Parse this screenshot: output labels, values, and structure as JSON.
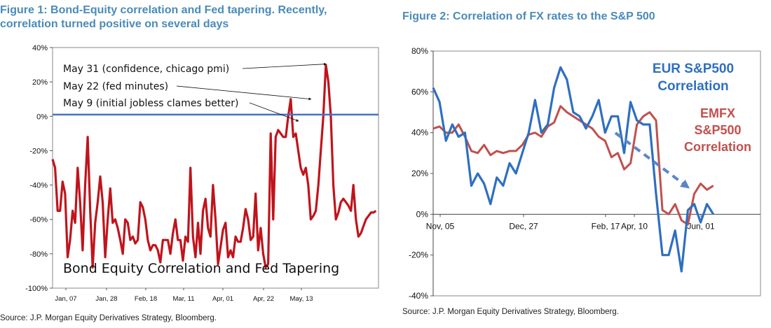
{
  "figure1": {
    "title": "Figure 1: Bond-Equity correlation and Fed tapering. Recently, correlation turned positive on several days",
    "source": "Source: J.P. Morgan Equity Derivatives Strategy, Bloomberg.",
    "chart_data": {
      "type": "line",
      "title": "Bond Equity Correlation and Fed Tapering",
      "xlabel": "",
      "ylabel": "",
      "ylim": [
        -100,
        40
      ],
      "y_tick_labels": [
        "40%",
        "20%",
        "0%",
        "-20%",
        "-40%",
        "-60%",
        "-80%",
        "-100%"
      ],
      "x_tick_labels": [
        "Jan, 07",
        "Jan, 28",
        "Feb, 18",
        "Mar, 11",
        "Apr, 01",
        "Apr, 22",
        "May, 13"
      ],
      "x_domain": [
        0,
        130
      ],
      "grid": false,
      "legend": "none",
      "reference_line": {
        "y": 1,
        "color": "#4472c4"
      },
      "series": [
        {
          "color": "#c0141c",
          "x": [
            0,
            1,
            2,
            3,
            4,
            5,
            6,
            7,
            8,
            9,
            10,
            11,
            12,
            13,
            14,
            15,
            16,
            17,
            18,
            19,
            20,
            21,
            22,
            23,
            24,
            25,
            26,
            27,
            28,
            29,
            30,
            31,
            32,
            33,
            34,
            35,
            36,
            37,
            38,
            39,
            40,
            41,
            42,
            43,
            44,
            45,
            46,
            47,
            48,
            49,
            50,
            51,
            52,
            53,
            54,
            55,
            56,
            57,
            58,
            59,
            60,
            61,
            62,
            63,
            64,
            65,
            66,
            67,
            68,
            69,
            70,
            71,
            72,
            73,
            74,
            75,
            76,
            77,
            78,
            79,
            80,
            81,
            82,
            83,
            84,
            85,
            86,
            87,
            88,
            89,
            90,
            91,
            92,
            93,
            94,
            95,
            96,
            97,
            98,
            99,
            100,
            101,
            102,
            103,
            104,
            105,
            106,
            107,
            108,
            109,
            110,
            111,
            112,
            113,
            114,
            115,
            116,
            117,
            118,
            119,
            120,
            121,
            122,
            123,
            124,
            125,
            126,
            127,
            128,
            129
          ],
          "values": [
            -25,
            -30,
            -55,
            -55,
            -38,
            -45,
            -82,
            -72,
            -55,
            -62,
            -30,
            -50,
            -78,
            -40,
            -12,
            -55,
            -88,
            -62,
            -50,
            -35,
            -50,
            -82,
            -60,
            -42,
            -62,
            -60,
            -65,
            -72,
            -80,
            -60,
            -62,
            -72,
            -70,
            -74,
            -72,
            -50,
            -53,
            -60,
            -72,
            -78,
            -75,
            -75,
            -78,
            -85,
            -72,
            -72,
            -72,
            -80,
            -68,
            -60,
            -72,
            -72,
            -84,
            -70,
            -73,
            -30,
            -70,
            -82,
            -62,
            -80,
            -55,
            -48,
            -65,
            -70,
            -40,
            -60,
            -86,
            -76,
            -66,
            -62,
            -82,
            -78,
            -82,
            -70,
            -73,
            -73,
            -65,
            -54,
            -60,
            -72,
            -70,
            -45,
            -78,
            -65,
            -80,
            -88,
            -86,
            -10,
            -60,
            -12,
            -8,
            -10,
            -12,
            -12,
            0,
            10,
            -12,
            -10,
            -20,
            -30,
            -34,
            -30,
            -40,
            -60,
            -58,
            -55,
            -40,
            -20,
            0,
            30,
            20,
            0,
            -40,
            -60,
            -56,
            -50,
            -48,
            -50,
            -52,
            -55,
            -40,
            -60,
            -70,
            -68,
            -64,
            -60,
            -58,
            -56,
            -56,
            -55
          ]
        }
      ],
      "annotations": [
        {
          "text": "May 31 (confidence, chicago pmi)",
          "x": 110,
          "y": 30
        },
        {
          "text": "May 22 (fed minutes)",
          "x": 104,
          "y": 10
        },
        {
          "text": "May 9 (initial jobless clames better)",
          "x": 99,
          "y": -2
        }
      ]
    }
  },
  "figure2": {
    "title": "Figure 2: Correlation of FX rates to the S&P 500",
    "source": "Source: J.P. Morgan Equity Derivatives Strategy, Bloomberg.",
    "chart_data": {
      "type": "line",
      "title": "",
      "xlabel": "",
      "ylabel": "",
      "ylim": [
        -40,
        80
      ],
      "y_tick_labels": [
        "80%",
        "60%",
        "40%",
        "20%",
        "0%",
        "-20%",
        "-40%"
      ],
      "x_tick_labels": [
        "Nov, 05",
        "Dec, 27",
        "Feb, 17",
        "Apr, 10",
        "Jun, 01"
      ],
      "x_domain": [
        0,
        224
      ],
      "grid": false,
      "legend": "inline",
      "series": [
        {
          "name": "EUR S&P500 Correlation",
          "color": "#2e6fc0",
          "x": [
            0,
            5,
            10,
            15,
            20,
            25,
            30,
            35,
            40,
            45,
            50,
            55,
            60,
            65,
            70,
            75,
            80,
            85,
            90,
            95,
            100,
            105,
            110,
            115,
            120,
            125,
            130,
            135,
            140,
            145,
            150,
            155,
            160,
            165,
            170,
            175,
            180,
            185,
            190,
            195,
            200,
            205,
            210,
            215,
            220
          ],
          "values": [
            62,
            55,
            36,
            44,
            38,
            40,
            14,
            20,
            15,
            5,
            18,
            14,
            25,
            20,
            30,
            40,
            56,
            40,
            44,
            62,
            72,
            66,
            50,
            48,
            42,
            48,
            56,
            40,
            48,
            48,
            30,
            55,
            46,
            44,
            44,
            10,
            -20,
            -20,
            -8,
            -28,
            2,
            5,
            -4,
            5,
            0
          ]
        },
        {
          "name": "EMFX S&P500 Correlation",
          "color": "#c0504d",
          "x": [
            0,
            5,
            10,
            15,
            20,
            25,
            30,
            35,
            40,
            45,
            50,
            55,
            60,
            65,
            70,
            75,
            80,
            85,
            90,
            95,
            100,
            105,
            110,
            115,
            120,
            125,
            130,
            135,
            140,
            145,
            150,
            155,
            160,
            165,
            170,
            175,
            180,
            185,
            190,
            195,
            200,
            205,
            210,
            215,
            220
          ],
          "values": [
            42,
            43,
            40,
            40,
            44,
            38,
            31,
            30,
            34,
            29,
            31,
            30,
            31,
            31,
            34,
            39,
            40,
            38,
            43,
            45,
            53,
            50,
            48,
            46,
            44,
            42,
            38,
            36,
            28,
            30,
            22,
            25,
            44,
            48,
            50,
            46,
            2,
            0,
            5,
            -3,
            -5,
            10,
            15,
            12,
            14
          ]
        }
      ],
      "annotations": [
        {
          "text": "EUR S&P500 Correlation",
          "lines": [
            "EUR S&P500",
            "Correlation"
          ],
          "color": "#2e6fc0"
        },
        {
          "text": "EMFX S&P500 Correlation",
          "lines": [
            "EMFX",
            "S&P500",
            "Correlation"
          ],
          "color": "#c0504d"
        }
      ]
    }
  }
}
